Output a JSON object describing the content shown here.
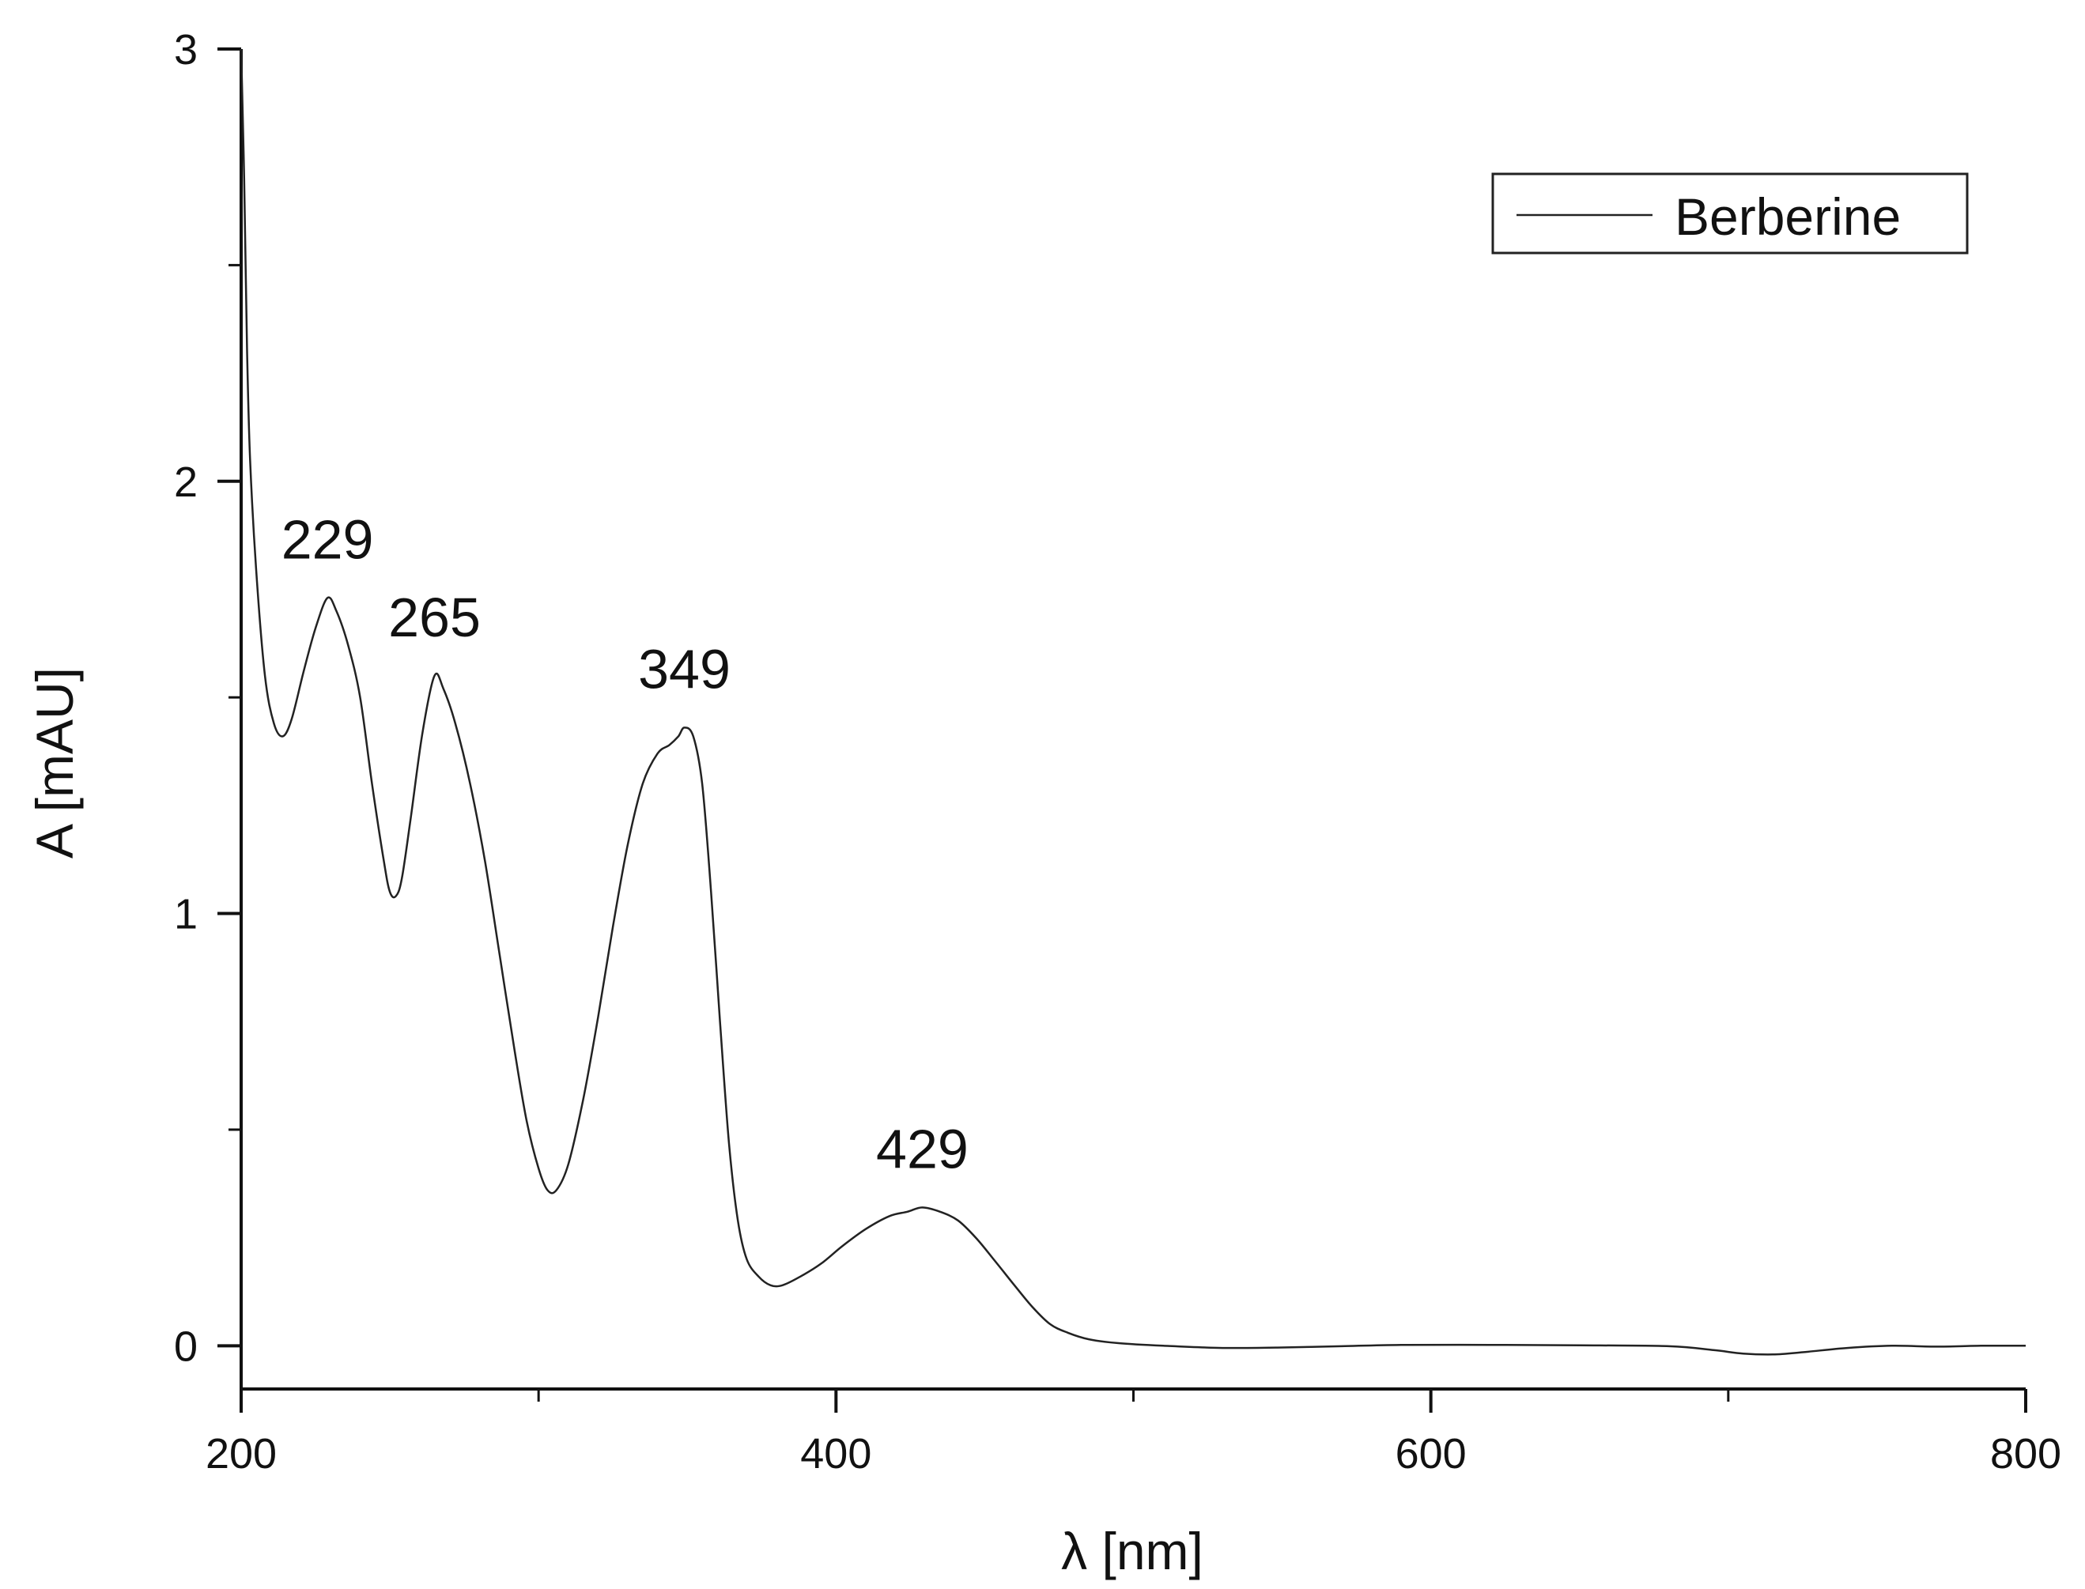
{
  "chart_data": {
    "type": "line",
    "title": "",
    "xlabel": "λ [nm]",
    "ylabel": "A [mAU]",
    "xlim": [
      200,
      800
    ],
    "ylim": [
      -0.1,
      3
    ],
    "x_ticks": [
      200,
      400,
      600,
      800
    ],
    "x_minor_ticks": [
      300,
      500,
      700
    ],
    "y_ticks": [
      0,
      1,
      2,
      3
    ],
    "y_minor_ticks": [
      0.5,
      1.5,
      2.5
    ],
    "grid": false,
    "legend_position": "top-right",
    "series": [
      {
        "name": "Berberine",
        "color": "#222222",
        "points": [
          [
            200,
            3.0
          ],
          [
            201,
            2.7
          ],
          [
            202,
            2.3
          ],
          [
            203,
            2.05
          ],
          [
            205,
            1.8
          ],
          [
            208,
            1.55
          ],
          [
            211,
            1.44
          ],
          [
            214,
            1.41
          ],
          [
            217,
            1.45
          ],
          [
            221,
            1.56
          ],
          [
            225,
            1.66
          ],
          [
            229,
            1.73
          ],
          [
            232,
            1.7
          ],
          [
            236,
            1.62
          ],
          [
            240,
            1.5
          ],
          [
            244,
            1.3
          ],
          [
            248,
            1.12
          ],
          [
            250,
            1.05
          ],
          [
            252,
            1.04
          ],
          [
            254,
            1.08
          ],
          [
            257,
            1.22
          ],
          [
            261,
            1.42
          ],
          [
            265,
            1.55
          ],
          [
            268,
            1.52
          ],
          [
            272,
            1.44
          ],
          [
            277,
            1.3
          ],
          [
            282,
            1.12
          ],
          [
            287,
            0.9
          ],
          [
            292,
            0.68
          ],
          [
            296,
            0.52
          ],
          [
            300,
            0.41
          ],
          [
            303,
            0.36
          ],
          [
            306,
            0.36
          ],
          [
            310,
            0.42
          ],
          [
            315,
            0.57
          ],
          [
            320,
            0.76
          ],
          [
            325,
            0.97
          ],
          [
            330,
            1.16
          ],
          [
            335,
            1.3
          ],
          [
            340,
            1.37
          ],
          [
            344,
            1.39
          ],
          [
            347,
            1.41
          ],
          [
            349,
            1.43
          ],
          [
            352,
            1.41
          ],
          [
            355,
            1.3
          ],
          [
            358,
            1.05
          ],
          [
            361,
            0.75
          ],
          [
            364,
            0.47
          ],
          [
            367,
            0.29
          ],
          [
            370,
            0.2
          ],
          [
            374,
            0.16
          ],
          [
            378,
            0.14
          ],
          [
            382,
            0.14
          ],
          [
            388,
            0.16
          ],
          [
            395,
            0.19
          ],
          [
            402,
            0.23
          ],
          [
            410,
            0.27
          ],
          [
            418,
            0.3
          ],
          [
            424,
            0.31
          ],
          [
            429,
            0.32
          ],
          [
            435,
            0.31
          ],
          [
            441,
            0.29
          ],
          [
            447,
            0.25
          ],
          [
            453,
            0.2
          ],
          [
            460,
            0.14
          ],
          [
            466,
            0.09
          ],
          [
            472,
            0.05
          ],
          [
            478,
            0.03
          ],
          [
            485,
            0.015
          ],
          [
            495,
            0.006
          ],
          [
            510,
            0.0
          ],
          [
            530,
            -0.005
          ],
          [
            550,
            -0.004
          ],
          [
            570,
            -0.001
          ],
          [
            590,
            0.002
          ],
          [
            620,
            0.002
          ],
          [
            650,
            0.001
          ],
          [
            680,
            -0.001
          ],
          [
            695,
            -0.01
          ],
          [
            705,
            -0.018
          ],
          [
            715,
            -0.02
          ],
          [
            725,
            -0.015
          ],
          [
            740,
            -0.005
          ],
          [
            755,
            0.0
          ],
          [
            770,
            -0.002
          ],
          [
            785,
            0.0
          ],
          [
            800,
            0.0
          ]
        ]
      }
    ],
    "annotations": [
      {
        "text": "229",
        "x": 229,
        "y": 1.73
      },
      {
        "text": "265",
        "x": 265,
        "y": 1.55
      },
      {
        "text": "349",
        "x": 349,
        "y": 1.43
      },
      {
        "text": "429",
        "x": 429,
        "y": 0.32
      }
    ]
  }
}
